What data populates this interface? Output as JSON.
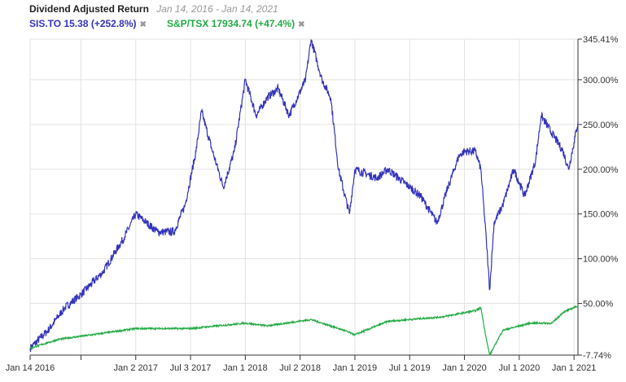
{
  "header": {
    "title": "Dividend Adjusted Return",
    "range": "Jan 14, 2016 - Jan 14, 2021"
  },
  "legend": [
    {
      "label": "SIS.TO 15.38 (+252.8%)",
      "color": "#3333bb",
      "close": "✖"
    },
    {
      "label": "S&P/TSX 17934.74 (+47.4%)",
      "color": "#22aa44",
      "close": "✖"
    }
  ],
  "chart_data": {
    "type": "line",
    "title": "Dividend Adjusted Return",
    "xlabel": "",
    "ylabel": "",
    "xlim": [
      2016.036,
      2021.036
    ],
    "ylim": [
      -7.74,
      345.41
    ],
    "x_ticks": [
      {
        "v": 2016.036,
        "label": "Jan 14 2016"
      },
      {
        "v": 2016.5,
        "label": ""
      },
      {
        "v": 2017.0,
        "label": "Jan 2 2017"
      },
      {
        "v": 2017.5,
        "label": "Jul 3 2017"
      },
      {
        "v": 2018.0,
        "label": "Jan 1 2018"
      },
      {
        "v": 2018.5,
        "label": "Jul 2 2018"
      },
      {
        "v": 2019.0,
        "label": "Jan 1 2019"
      },
      {
        "v": 2019.5,
        "label": "Jul 1 2019"
      },
      {
        "v": 2020.0,
        "label": "Jan 1 2020"
      },
      {
        "v": 2020.5,
        "label": "Jul 1 2020"
      },
      {
        "v": 2021.0,
        "label": "Jan 1 2021"
      }
    ],
    "y_ticks": [
      {
        "v": 345.41,
        "label": "345.41%"
      },
      {
        "v": 300,
        "label": "300.00%"
      },
      {
        "v": 250,
        "label": "250.00%"
      },
      {
        "v": 200,
        "label": "200.00%"
      },
      {
        "v": 150,
        "label": "150.00%"
      },
      {
        "v": 100,
        "label": "100.00%"
      },
      {
        "v": 50,
        "label": "50.00%"
      },
      {
        "v": -7.74,
        "label": "-7.74%"
      }
    ],
    "grid": true,
    "series": [
      {
        "name": "SIS.TO",
        "color": "#3333bb",
        "points": [
          [
            2016.036,
            0
          ],
          [
            2016.2,
            20
          ],
          [
            2016.35,
            45
          ],
          [
            2016.5,
            60
          ],
          [
            2016.7,
            85
          ],
          [
            2016.9,
            125
          ],
          [
            2017.0,
            150
          ],
          [
            2017.1,
            140
          ],
          [
            2017.2,
            130
          ],
          [
            2017.35,
            130
          ],
          [
            2017.45,
            160
          ],
          [
            2017.55,
            220
          ],
          [
            2017.6,
            265
          ],
          [
            2017.7,
            220
          ],
          [
            2017.8,
            180
          ],
          [
            2017.9,
            220
          ],
          [
            2018.0,
            300
          ],
          [
            2018.1,
            260
          ],
          [
            2018.2,
            280
          ],
          [
            2018.3,
            290
          ],
          [
            2018.4,
            260
          ],
          [
            2018.55,
            300
          ],
          [
            2018.6,
            345
          ],
          [
            2018.7,
            300
          ],
          [
            2018.78,
            280
          ],
          [
            2018.85,
            200
          ],
          [
            2018.95,
            150
          ],
          [
            2019.0,
            200
          ],
          [
            2019.2,
            190
          ],
          [
            2019.3,
            200
          ],
          [
            2019.5,
            180
          ],
          [
            2019.6,
            170
          ],
          [
            2019.75,
            140
          ],
          [
            2019.85,
            180
          ],
          [
            2019.95,
            215
          ],
          [
            2020.0,
            220
          ],
          [
            2020.1,
            220
          ],
          [
            2020.15,
            200
          ],
          [
            2020.2,
            120
          ],
          [
            2020.23,
            65
          ],
          [
            2020.27,
            140
          ],
          [
            2020.35,
            160
          ],
          [
            2020.45,
            200
          ],
          [
            2020.55,
            170
          ],
          [
            2020.65,
            210
          ],
          [
            2020.7,
            260
          ],
          [
            2020.8,
            240
          ],
          [
            2020.9,
            220
          ],
          [
            2020.95,
            200
          ],
          [
            2021.0,
            230
          ],
          [
            2021.036,
            252.8
          ]
        ]
      },
      {
        "name": "S&P/TSX",
        "color": "#22aa44",
        "points": [
          [
            2016.036,
            0
          ],
          [
            2016.3,
            10
          ],
          [
            2016.6,
            15
          ],
          [
            2017.0,
            22
          ],
          [
            2017.5,
            22
          ],
          [
            2018.0,
            28
          ],
          [
            2018.2,
            25
          ],
          [
            2018.6,
            32
          ],
          [
            2018.9,
            20
          ],
          [
            2019.0,
            15
          ],
          [
            2019.3,
            30
          ],
          [
            2019.8,
            35
          ],
          [
            2020.1,
            42
          ],
          [
            2020.15,
            45
          ],
          [
            2020.2,
            10
          ],
          [
            2020.23,
            -7.74
          ],
          [
            2020.35,
            20
          ],
          [
            2020.6,
            28
          ],
          [
            2020.8,
            28
          ],
          [
            2020.9,
            40
          ],
          [
            2021.036,
            47.4
          ]
        ]
      }
    ]
  }
}
